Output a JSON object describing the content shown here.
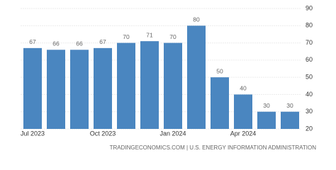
{
  "chart_data": {
    "type": "bar",
    "categories": [
      "Jul 2023",
      null,
      null,
      "Oct 2023",
      null,
      null,
      "Jan 2024",
      null,
      null,
      "Apr 2024",
      null,
      null
    ],
    "values": [
      67,
      66,
      66,
      67,
      70,
      71,
      70,
      80,
      50,
      40,
      30,
      30
    ],
    "color": "#4a86c0",
    "ylim": [
      20,
      90
    ],
    "yticks": [
      20,
      30,
      40,
      50,
      60,
      70,
      80,
      90
    ],
    "grid": true,
    "source": "TRADINGECONOMICS.COM | U.S. ENERGY INFORMATION ADMINISTRATION"
  }
}
